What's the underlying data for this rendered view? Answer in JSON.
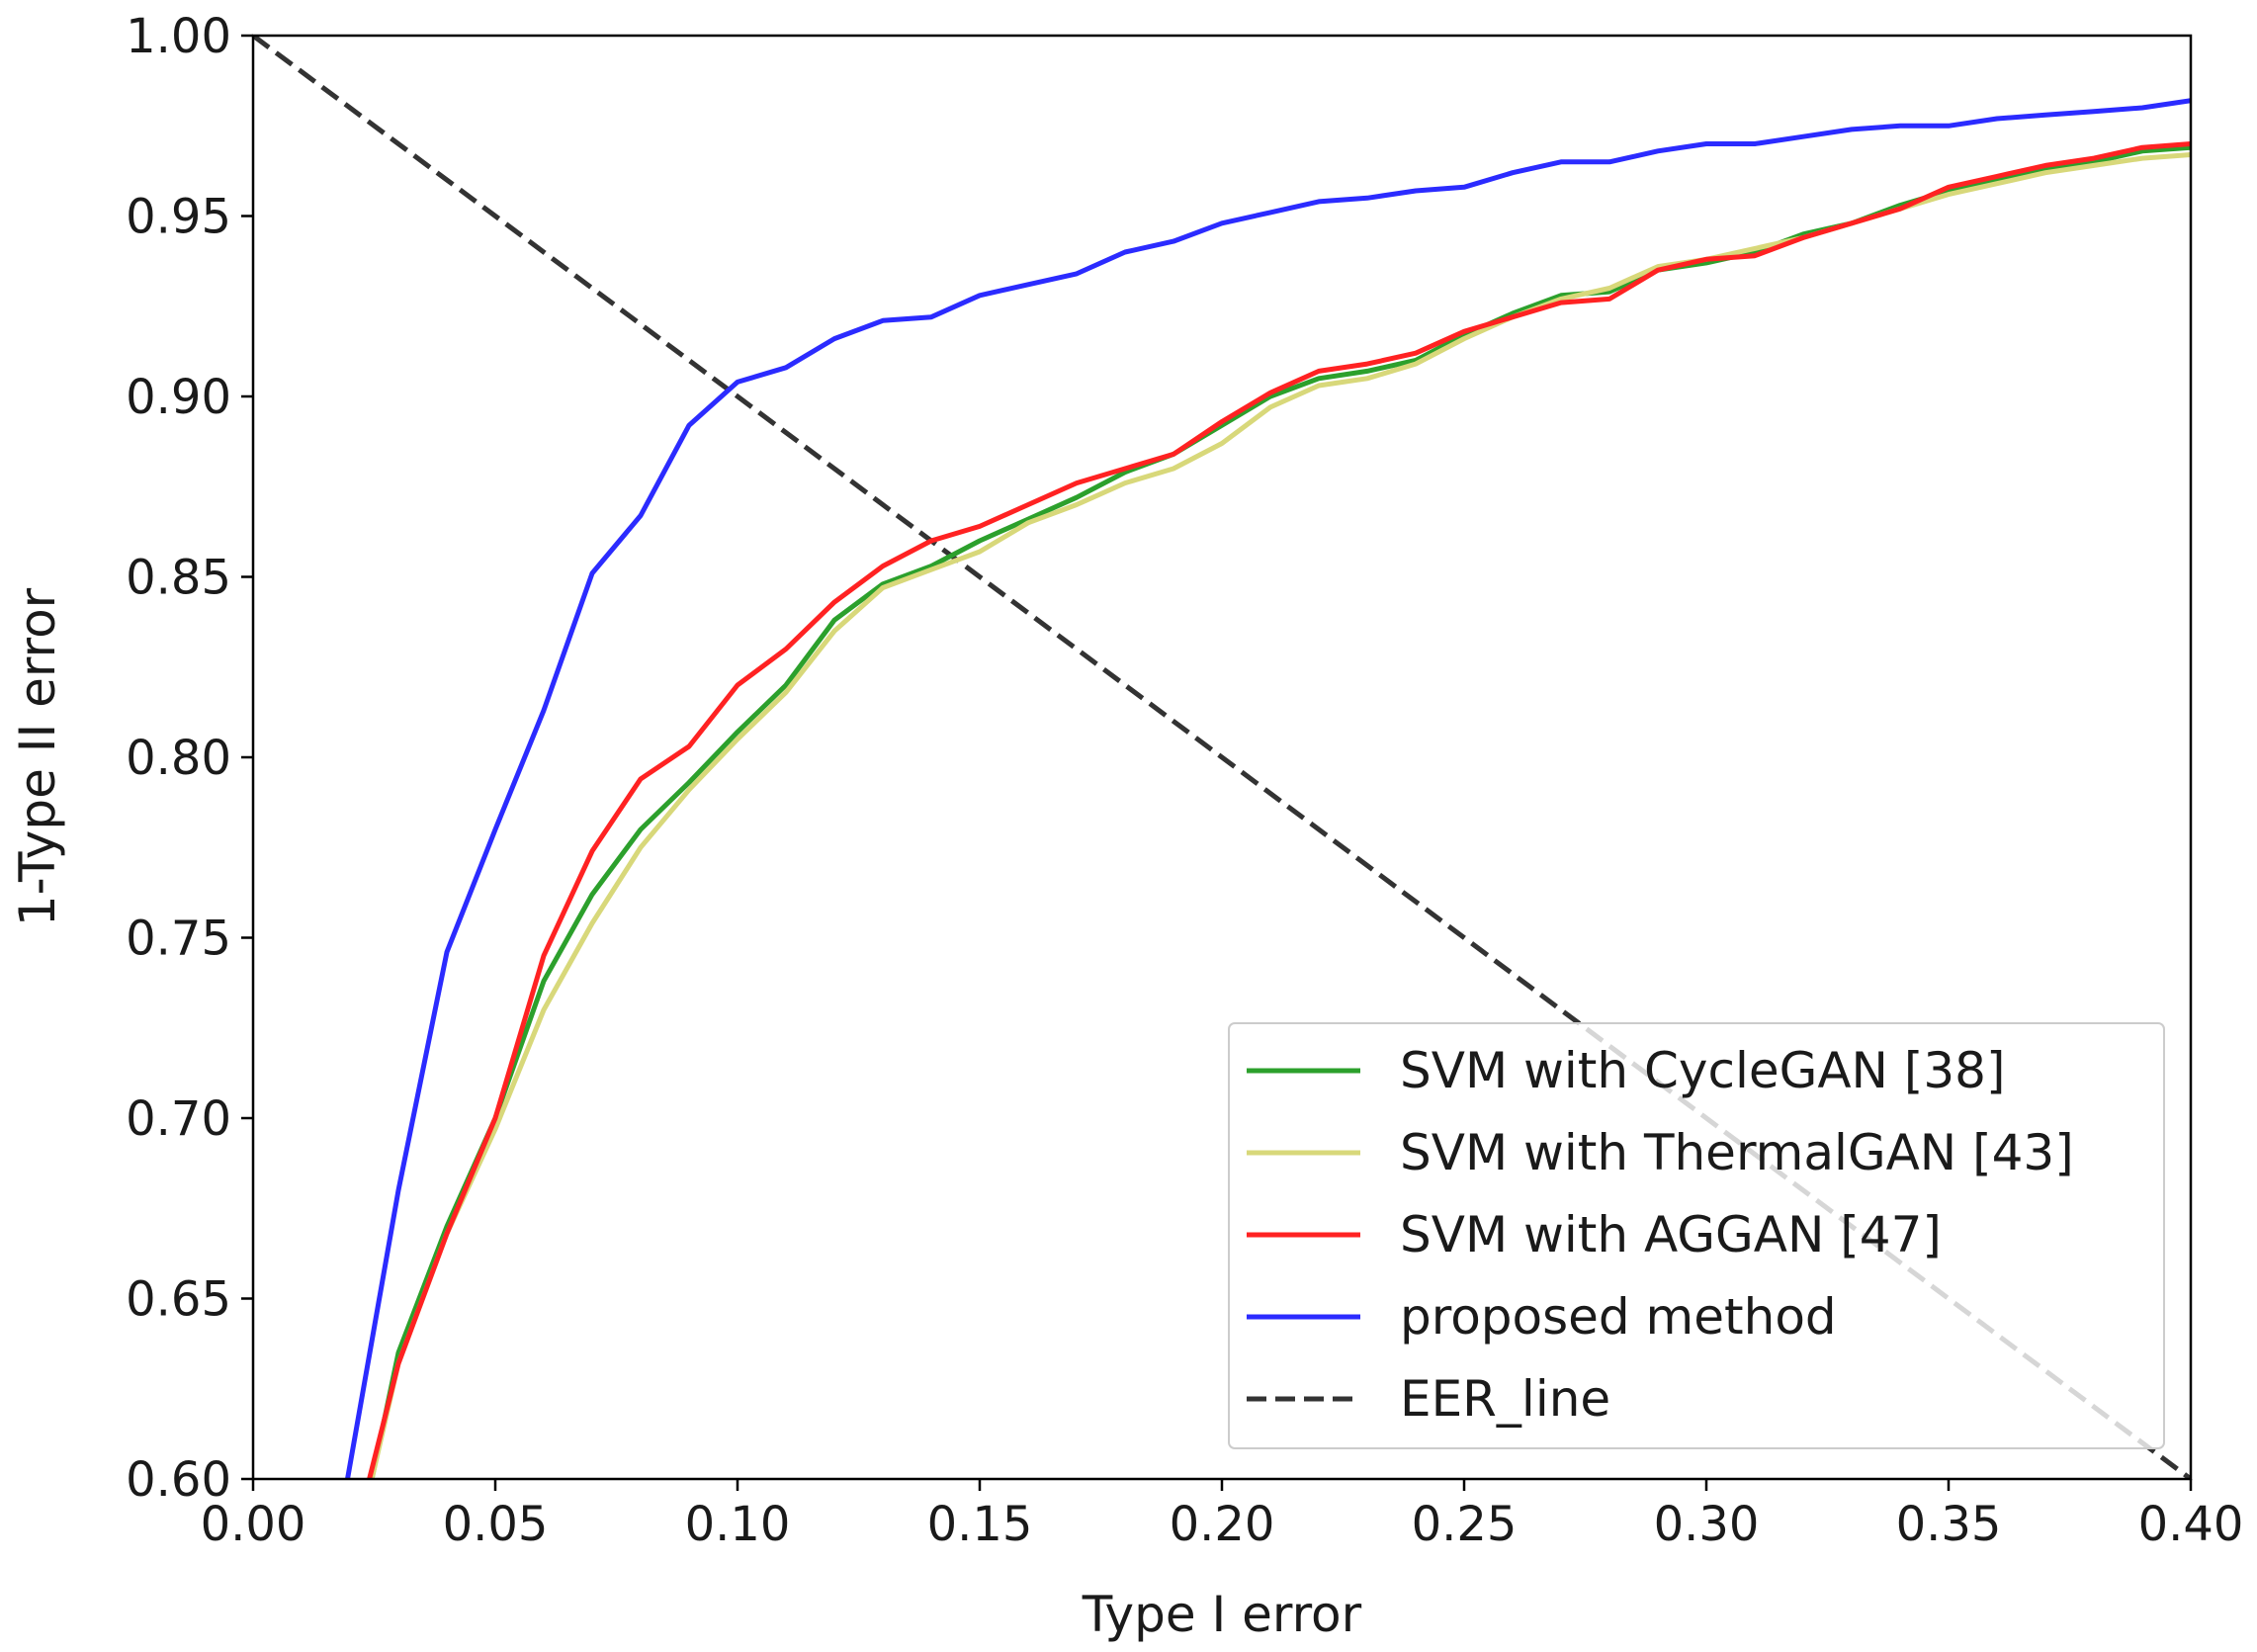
{
  "chart_data": {
    "type": "line",
    "title": "",
    "xlabel": "Type I error",
    "ylabel": "1-Type II error",
    "xlim": [
      0.0,
      0.4
    ],
    "ylim": [
      0.6,
      1.0
    ],
    "xticks": [
      "0.00",
      "0.05",
      "0.10",
      "0.15",
      "0.20",
      "0.25",
      "0.30",
      "0.35",
      "0.40"
    ],
    "yticks": [
      "0.60",
      "0.65",
      "0.70",
      "0.75",
      "0.80",
      "0.85",
      "0.90",
      "0.95",
      "1.00"
    ],
    "grid": false,
    "legend_position": "lower-right",
    "series": [
      {
        "name": "SVM with CycleGAN [38]",
        "color": "#2ca02c",
        "style": "solid",
        "points": [
          [
            0.0245,
            0.6
          ],
          [
            0.03,
            0.635
          ],
          [
            0.04,
            0.67
          ],
          [
            0.05,
            0.7
          ],
          [
            0.06,
            0.738
          ],
          [
            0.07,
            0.762
          ],
          [
            0.08,
            0.78
          ],
          [
            0.09,
            0.793
          ],
          [
            0.1,
            0.807
          ],
          [
            0.11,
            0.82
          ],
          [
            0.12,
            0.838
          ],
          [
            0.13,
            0.848
          ],
          [
            0.14,
            0.853
          ],
          [
            0.15,
            0.86
          ],
          [
            0.16,
            0.866
          ],
          [
            0.17,
            0.872
          ],
          [
            0.18,
            0.879
          ],
          [
            0.19,
            0.884
          ],
          [
            0.2,
            0.892
          ],
          [
            0.21,
            0.9
          ],
          [
            0.22,
            0.905
          ],
          [
            0.23,
            0.907
          ],
          [
            0.24,
            0.91
          ],
          [
            0.25,
            0.917
          ],
          [
            0.26,
            0.923
          ],
          [
            0.27,
            0.928
          ],
          [
            0.28,
            0.929
          ],
          [
            0.29,
            0.935
          ],
          [
            0.3,
            0.937
          ],
          [
            0.31,
            0.94
          ],
          [
            0.32,
            0.945
          ],
          [
            0.33,
            0.948
          ],
          [
            0.34,
            0.953
          ],
          [
            0.35,
            0.957
          ],
          [
            0.36,
            0.96
          ],
          [
            0.37,
            0.963
          ],
          [
            0.38,
            0.965
          ],
          [
            0.39,
            0.968
          ],
          [
            0.4,
            0.969
          ]
        ]
      },
      {
        "name": "SVM with ThermalGAN [43]",
        "color": "#d8d87a",
        "style": "solid",
        "points": [
          [
            0.0245,
            0.6
          ],
          [
            0.03,
            0.632
          ],
          [
            0.04,
            0.668
          ],
          [
            0.05,
            0.697
          ],
          [
            0.06,
            0.73
          ],
          [
            0.07,
            0.754
          ],
          [
            0.08,
            0.775
          ],
          [
            0.09,
            0.791
          ],
          [
            0.1,
            0.805
          ],
          [
            0.11,
            0.818
          ],
          [
            0.12,
            0.835
          ],
          [
            0.13,
            0.847
          ],
          [
            0.14,
            0.852
          ],
          [
            0.15,
            0.857
          ],
          [
            0.16,
            0.865
          ],
          [
            0.17,
            0.87
          ],
          [
            0.18,
            0.876
          ],
          [
            0.19,
            0.88
          ],
          [
            0.2,
            0.887
          ],
          [
            0.21,
            0.897
          ],
          [
            0.22,
            0.903
          ],
          [
            0.23,
            0.905
          ],
          [
            0.24,
            0.909
          ],
          [
            0.25,
            0.916
          ],
          [
            0.26,
            0.922
          ],
          [
            0.27,
            0.927
          ],
          [
            0.28,
            0.93
          ],
          [
            0.29,
            0.936
          ],
          [
            0.3,
            0.938
          ],
          [
            0.31,
            0.941
          ],
          [
            0.32,
            0.944
          ],
          [
            0.33,
            0.948
          ],
          [
            0.34,
            0.952
          ],
          [
            0.35,
            0.956
          ],
          [
            0.36,
            0.959
          ],
          [
            0.37,
            0.962
          ],
          [
            0.38,
            0.964
          ],
          [
            0.39,
            0.966
          ],
          [
            0.4,
            0.967
          ]
        ]
      },
      {
        "name": "SVM with AGGAN [47]",
        "color": "#ff2222",
        "style": "solid",
        "points": [
          [
            0.024,
            0.6
          ],
          [
            0.03,
            0.632
          ],
          [
            0.04,
            0.668
          ],
          [
            0.05,
            0.7
          ],
          [
            0.06,
            0.745
          ],
          [
            0.07,
            0.774
          ],
          [
            0.08,
            0.794
          ],
          [
            0.09,
            0.803
          ],
          [
            0.1,
            0.82
          ],
          [
            0.11,
            0.83
          ],
          [
            0.12,
            0.843
          ],
          [
            0.13,
            0.853
          ],
          [
            0.14,
            0.86
          ],
          [
            0.15,
            0.864
          ],
          [
            0.16,
            0.87
          ],
          [
            0.17,
            0.876
          ],
          [
            0.18,
            0.88
          ],
          [
            0.19,
            0.884
          ],
          [
            0.2,
            0.893
          ],
          [
            0.21,
            0.901
          ],
          [
            0.22,
            0.907
          ],
          [
            0.23,
            0.909
          ],
          [
            0.24,
            0.912
          ],
          [
            0.25,
            0.918
          ],
          [
            0.26,
            0.922
          ],
          [
            0.27,
            0.926
          ],
          [
            0.28,
            0.927
          ],
          [
            0.29,
            0.935
          ],
          [
            0.3,
            0.938
          ],
          [
            0.31,
            0.939
          ],
          [
            0.32,
            0.944
          ],
          [
            0.33,
            0.948
          ],
          [
            0.34,
            0.952
          ],
          [
            0.35,
            0.958
          ],
          [
            0.36,
            0.961
          ],
          [
            0.37,
            0.964
          ],
          [
            0.38,
            0.966
          ],
          [
            0.39,
            0.969
          ],
          [
            0.4,
            0.97
          ]
        ]
      },
      {
        "name": "proposed method",
        "color": "#2b2bff",
        "style": "solid",
        "points": [
          [
            0.0195,
            0.6
          ],
          [
            0.03,
            0.68
          ],
          [
            0.04,
            0.746
          ],
          [
            0.05,
            0.78
          ],
          [
            0.06,
            0.813
          ],
          [
            0.07,
            0.851
          ],
          [
            0.08,
            0.867
          ],
          [
            0.09,
            0.892
          ],
          [
            0.1,
            0.904
          ],
          [
            0.11,
            0.908
          ],
          [
            0.12,
            0.916
          ],
          [
            0.13,
            0.921
          ],
          [
            0.14,
            0.922
          ],
          [
            0.15,
            0.928
          ],
          [
            0.16,
            0.931
          ],
          [
            0.17,
            0.934
          ],
          [
            0.18,
            0.94
          ],
          [
            0.19,
            0.943
          ],
          [
            0.2,
            0.948
          ],
          [
            0.21,
            0.951
          ],
          [
            0.22,
            0.954
          ],
          [
            0.23,
            0.955
          ],
          [
            0.24,
            0.957
          ],
          [
            0.25,
            0.958
          ],
          [
            0.26,
            0.962
          ],
          [
            0.27,
            0.965
          ],
          [
            0.28,
            0.965
          ],
          [
            0.29,
            0.968
          ],
          [
            0.3,
            0.97
          ],
          [
            0.31,
            0.97
          ],
          [
            0.32,
            0.972
          ],
          [
            0.33,
            0.974
          ],
          [
            0.34,
            0.975
          ],
          [
            0.35,
            0.975
          ],
          [
            0.36,
            0.977
          ],
          [
            0.37,
            0.978
          ],
          [
            0.38,
            0.979
          ],
          [
            0.39,
            0.98
          ],
          [
            0.4,
            0.982
          ]
        ]
      },
      {
        "name": "EER_line",
        "color": "#333333",
        "style": "dashed",
        "points": [
          [
            0.0,
            1.0
          ],
          [
            0.4,
            0.6
          ]
        ]
      }
    ]
  }
}
